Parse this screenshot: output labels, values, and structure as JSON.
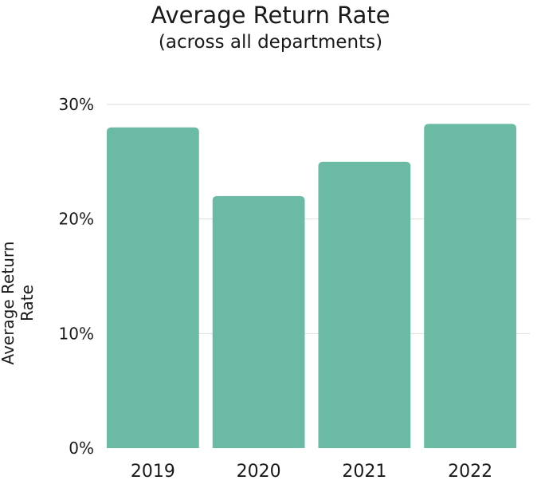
{
  "chart_data": {
    "type": "bar",
    "title": "Average Return Rate",
    "subtitle": "(across all departments)",
    "xlabel": "",
    "ylabel": "Average Return Rate",
    "categories": [
      "2019",
      "2020",
      "2021",
      "2022"
    ],
    "values": [
      28.0,
      22.0,
      25.0,
      28.3
    ],
    "value_unit": "%",
    "ylim": [
      0,
      30
    ],
    "yticks": [
      0,
      10,
      20,
      30
    ],
    "ytick_labels": [
      "0%",
      "10%",
      "20%",
      "30%"
    ],
    "grid": true,
    "legend": "none",
    "bar_color": "#6abaa4",
    "grid_color": "#dddddd"
  }
}
